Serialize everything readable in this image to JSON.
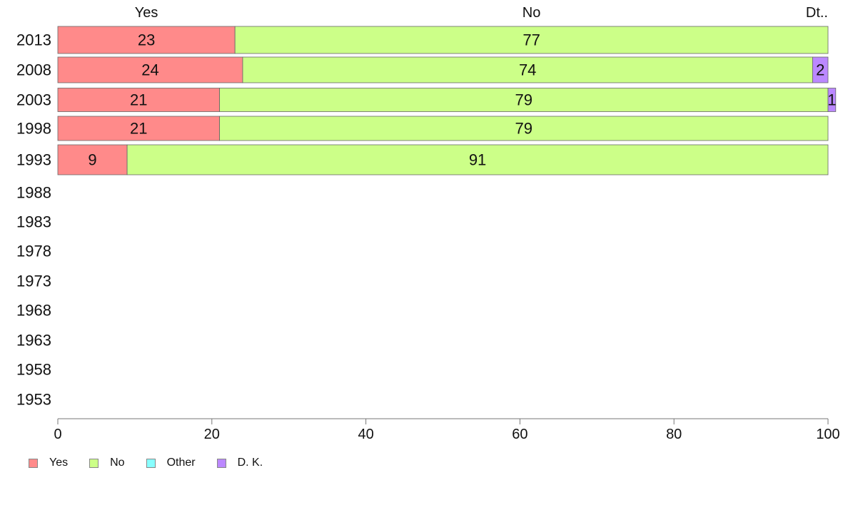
{
  "chart_data": {
    "type": "bar",
    "orientation": "horizontal",
    "stacked": true,
    "categories": [
      "2013",
      "2008",
      "2003",
      "1998",
      "1993",
      "1988",
      "1983",
      "1978",
      "1973",
      "1968",
      "1963",
      "1958",
      "1953"
    ],
    "series": [
      {
        "name": "Yes",
        "color": "#ff8a8a",
        "values": [
          23,
          24,
          21,
          21,
          9,
          null,
          null,
          null,
          null,
          null,
          null,
          null,
          null
        ]
      },
      {
        "name": "No",
        "color": "#ccff88",
        "values": [
          77,
          74,
          79,
          79,
          91,
          null,
          null,
          null,
          null,
          null,
          null,
          null,
          null
        ]
      },
      {
        "name": "Other",
        "color": "#88ffff",
        "values": [
          0,
          0,
          0,
          0,
          0,
          null,
          null,
          null,
          null,
          null,
          null,
          null,
          null
        ]
      },
      {
        "name": "D. K.",
        "color": "#bb88ff",
        "values": [
          0,
          2,
          1,
          0,
          0,
          null,
          null,
          null,
          null,
          null,
          null,
          null,
          null
        ]
      }
    ],
    "data_labels": {
      "Yes": [
        "23",
        "24",
        "21",
        "21",
        "9"
      ],
      "No": [
        "77",
        "74",
        "79",
        "79",
        "91"
      ],
      "D. K.": [
        "",
        "2",
        "1",
        "",
        ""
      ]
    },
    "top_labels": [
      "Yes",
      "No",
      "Dt.."
    ],
    "xticks": [
      0,
      20,
      40,
      60,
      80,
      100
    ],
    "xlim": [
      0,
      100
    ],
    "legend": {
      "position": "bottom-left",
      "entries": [
        "Yes",
        "No",
        "Other",
        "D. K."
      ]
    }
  }
}
